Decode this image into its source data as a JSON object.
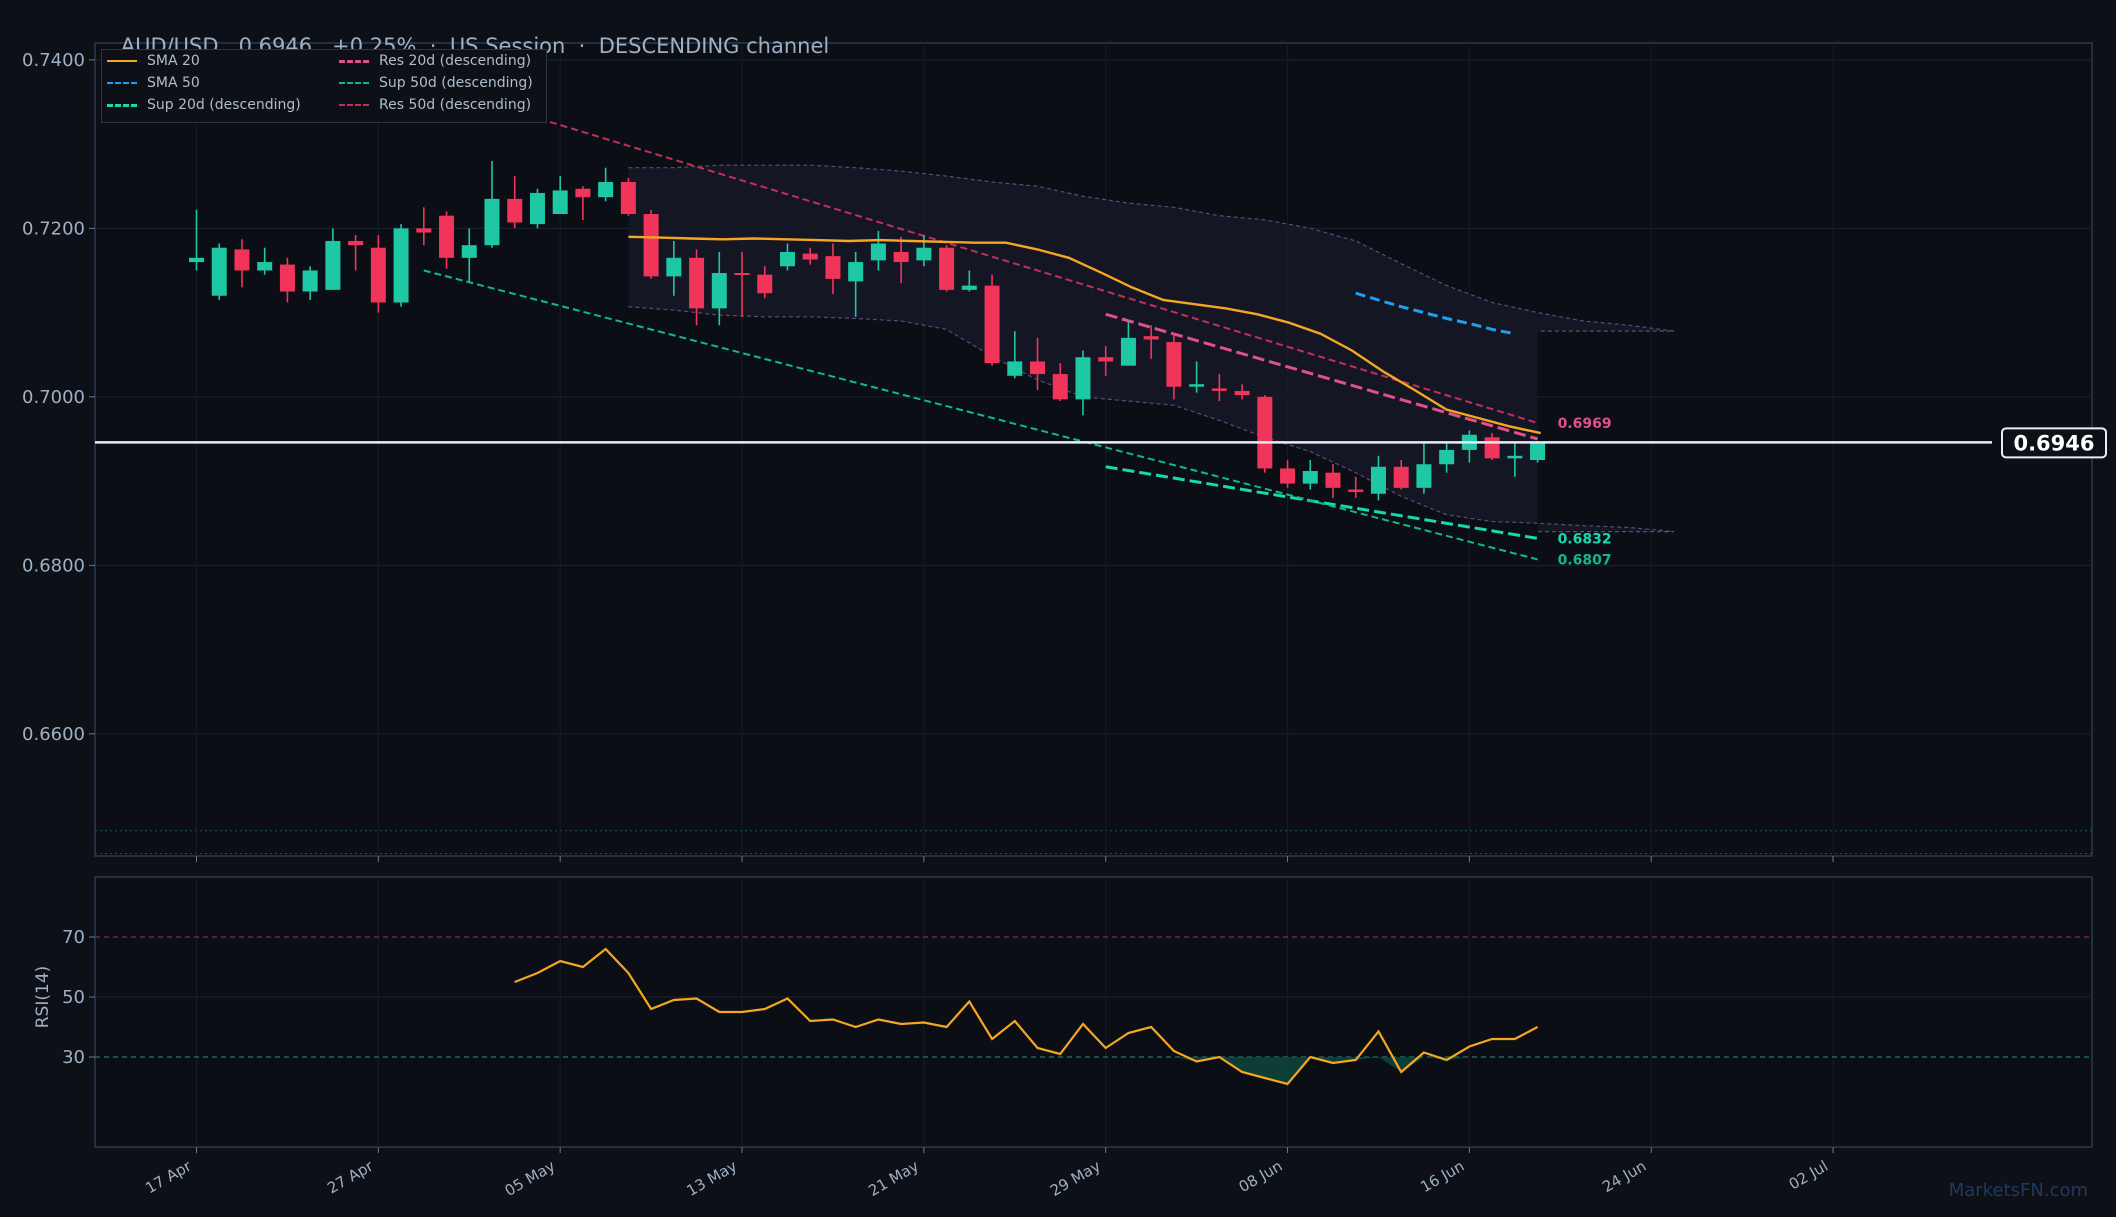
{
  "header": {
    "symbol": "AUD/USD",
    "price": "0.6946",
    "change": "+0.25%",
    "session": "US Session",
    "channel": "DESCENDING channel"
  },
  "watermark": "MarketsFN.com",
  "colors": {
    "background": "#0d1117",
    "bull": "#1ec8a5",
    "bear": "#f0345a",
    "sma20": "#f5a623",
    "sma50": "#1ea0f0",
    "support": "#18d8b0",
    "support50": "#12b886",
    "resistance": "#e0508a",
    "resistance50": "#c0305a",
    "rsi": "#f5a623",
    "grid": "#1b2330",
    "axis_text": "#9fb0c3"
  },
  "legend": [
    {
      "label": "SMA 20",
      "color": "#f5a623",
      "style": "solid"
    },
    {
      "label": "SMA 50",
      "color": "#1ea0f0",
      "style": "dashed"
    },
    {
      "label": "Sup 20d (descending)",
      "color": "#18d8b0",
      "style": "dashed"
    },
    {
      "label": "Res 20d (descending)",
      "color": "#e0508a",
      "style": "dashed"
    },
    {
      "label": "Sup 50d (descending)",
      "color": "#12b886",
      "style": "dotdash"
    },
    {
      "label": "Res 50d (descending)",
      "color": "#c0305a",
      "style": "dotdash"
    }
  ],
  "chart_data": {
    "type": "candlestick",
    "title": "AUD/USD   0.6946   +0.25%  ·  US Session  ·  DESCENDING channel",
    "x_tick_labels": [
      "17 Apr",
      "27 Apr",
      "05 May",
      "13 May",
      "21 May",
      "29 May",
      "08 Jun",
      "16 Jun",
      "24 Jun",
      "02 Jul"
    ],
    "y_ticks": [
      "0.7400",
      "0.7200",
      "0.7000",
      "0.6800",
      "0.6600"
    ],
    "ylim": [
      0.6455,
      0.742
    ],
    "last_price": 0.6946,
    "last_price_label": "0.6946",
    "candles": [
      {
        "o": 0.716,
        "h": 0.7222,
        "l": 0.715,
        "c": 0.7165
      },
      {
        "o": 0.712,
        "h": 0.7182,
        "l": 0.7115,
        "c": 0.7177
      },
      {
        "o": 0.7175,
        "h": 0.7187,
        "l": 0.713,
        "c": 0.715
      },
      {
        "o": 0.715,
        "h": 0.7177,
        "l": 0.7145,
        "c": 0.716
      },
      {
        "o": 0.7157,
        "h": 0.7165,
        "l": 0.7112,
        "c": 0.7125
      },
      {
        "o": 0.7125,
        "h": 0.7155,
        "l": 0.7115,
        "c": 0.715
      },
      {
        "o": 0.7127,
        "h": 0.72,
        "l": 0.7127,
        "c": 0.7185
      },
      {
        "o": 0.7185,
        "h": 0.7192,
        "l": 0.715,
        "c": 0.718
      },
      {
        "o": 0.7177,
        "h": 0.7192,
        "l": 0.71,
        "c": 0.7112
      },
      {
        "o": 0.7112,
        "h": 0.7205,
        "l": 0.7107,
        "c": 0.72
      },
      {
        "o": 0.72,
        "h": 0.7225,
        "l": 0.718,
        "c": 0.7195
      },
      {
        "o": 0.7215,
        "h": 0.722,
        "l": 0.7152,
        "c": 0.7165
      },
      {
        "o": 0.7165,
        "h": 0.72,
        "l": 0.7137,
        "c": 0.718
      },
      {
        "o": 0.718,
        "h": 0.728,
        "l": 0.7177,
        "c": 0.7235
      },
      {
        "o": 0.7235,
        "h": 0.7262,
        "l": 0.72,
        "c": 0.7207
      },
      {
        "o": 0.7205,
        "h": 0.7247,
        "l": 0.72,
        "c": 0.7242
      },
      {
        "o": 0.7217,
        "h": 0.7262,
        "l": 0.7217,
        "c": 0.7245
      },
      {
        "o": 0.7247,
        "h": 0.725,
        "l": 0.721,
        "c": 0.7237
      },
      {
        "o": 0.7237,
        "h": 0.7272,
        "l": 0.7232,
        "c": 0.7255
      },
      {
        "o": 0.7255,
        "h": 0.726,
        "l": 0.7215,
        "c": 0.7217
      },
      {
        "o": 0.7217,
        "h": 0.7222,
        "l": 0.714,
        "c": 0.7143
      },
      {
        "o": 0.7143,
        "h": 0.7185,
        "l": 0.712,
        "c": 0.7165
      },
      {
        "o": 0.7165,
        "h": 0.7175,
        "l": 0.7085,
        "c": 0.7105
      },
      {
        "o": 0.7105,
        "h": 0.7172,
        "l": 0.7085,
        "c": 0.7147
      },
      {
        "o": 0.7147,
        "h": 0.7172,
        "l": 0.7095,
        "c": 0.7145
      },
      {
        "o": 0.7145,
        "h": 0.7155,
        "l": 0.7117,
        "c": 0.7123
      },
      {
        "o": 0.7155,
        "h": 0.7182,
        "l": 0.715,
        "c": 0.7172
      },
      {
        "o": 0.717,
        "h": 0.7177,
        "l": 0.7157,
        "c": 0.7163
      },
      {
        "o": 0.7167,
        "h": 0.7182,
        "l": 0.7122,
        "c": 0.714
      },
      {
        "o": 0.7137,
        "h": 0.7172,
        "l": 0.7095,
        "c": 0.716
      },
      {
        "o": 0.7162,
        "h": 0.7197,
        "l": 0.715,
        "c": 0.7182
      },
      {
        "o": 0.7172,
        "h": 0.719,
        "l": 0.7135,
        "c": 0.716
      },
      {
        "o": 0.7162,
        "h": 0.7192,
        "l": 0.7155,
        "c": 0.7177
      },
      {
        "o": 0.7177,
        "h": 0.718,
        "l": 0.7125,
        "c": 0.7127
      },
      {
        "o": 0.7127,
        "h": 0.715,
        "l": 0.7125,
        "c": 0.7132
      },
      {
        "o": 0.7132,
        "h": 0.7145,
        "l": 0.7037,
        "c": 0.704
      },
      {
        "o": 0.7025,
        "h": 0.7078,
        "l": 0.7022,
        "c": 0.7042
      },
      {
        "o": 0.7042,
        "h": 0.707,
        "l": 0.7008,
        "c": 0.7027
      },
      {
        "o": 0.7027,
        "h": 0.704,
        "l": 0.6995,
        "c": 0.6997
      },
      {
        "o": 0.6997,
        "h": 0.7055,
        "l": 0.6978,
        "c": 0.7047
      },
      {
        "o": 0.7047,
        "h": 0.706,
        "l": 0.7025,
        "c": 0.7042
      },
      {
        "o": 0.7037,
        "h": 0.709,
        "l": 0.7037,
        "c": 0.707
      },
      {
        "o": 0.7072,
        "h": 0.7085,
        "l": 0.7045,
        "c": 0.7068
      },
      {
        "o": 0.7065,
        "h": 0.7075,
        "l": 0.6997,
        "c": 0.7012
      },
      {
        "o": 0.7012,
        "h": 0.7042,
        "l": 0.7005,
        "c": 0.7015
      },
      {
        "o": 0.701,
        "h": 0.7027,
        "l": 0.6995,
        "c": 0.7007
      },
      {
        "o": 0.7007,
        "h": 0.7015,
        "l": 0.6997,
        "c": 0.7002
      },
      {
        "o": 0.7,
        "h": 0.7002,
        "l": 0.691,
        "c": 0.6915
      },
      {
        "o": 0.6915,
        "h": 0.6925,
        "l": 0.6892,
        "c": 0.6897
      },
      {
        "o": 0.6897,
        "h": 0.6925,
        "l": 0.689,
        "c": 0.6912
      },
      {
        "o": 0.691,
        "h": 0.692,
        "l": 0.688,
        "c": 0.6892
      },
      {
        "o": 0.689,
        "h": 0.6905,
        "l": 0.688,
        "c": 0.6887
      },
      {
        "o": 0.6885,
        "h": 0.693,
        "l": 0.6877,
        "c": 0.6917
      },
      {
        "o": 0.6917,
        "h": 0.6925,
        "l": 0.689,
        "c": 0.6892
      },
      {
        "o": 0.6892,
        "h": 0.6945,
        "l": 0.6885,
        "c": 0.692
      },
      {
        "o": 0.692,
        "h": 0.6947,
        "l": 0.691,
        "c": 0.6937
      },
      {
        "o": 0.6937,
        "h": 0.696,
        "l": 0.6922,
        "c": 0.6955
      },
      {
        "o": 0.6952,
        "h": 0.6957,
        "l": 0.6925,
        "c": 0.6927
      },
      {
        "o": 0.6927,
        "h": 0.6945,
        "l": 0.6905,
        "c": 0.693
      },
      {
        "o": 0.6925,
        "h": 0.6947,
        "l": 0.6922,
        "c": 0.6946
      }
    ],
    "sma20": [
      0.719,
      0.7189,
      0.7188,
      0.7187,
      0.7188,
      0.7187,
      0.7186,
      0.7185,
      0.7186,
      0.7185,
      0.7184,
      0.7183,
      0.7183,
      0.7175,
      0.7165,
      0.7148,
      0.713,
      0.7115,
      0.711,
      0.7105,
      0.7098,
      0.7088,
      0.7075,
      0.7055,
      0.703,
      0.7008,
      0.6985,
      0.6975,
      0.6965,
      0.6957
    ],
    "sma20_start_index": 19,
    "sma50": [
      0.7123,
      0.7115,
      0.7107,
      0.71,
      0.7093,
      0.7087,
      0.708,
      0.7075
    ],
    "sma50_start_index": 51,
    "bands": {
      "upper": [
        0.7272,
        0.7272,
        0.7275,
        0.7275,
        0.7275,
        0.7272,
        0.7268,
        0.7262,
        0.7255,
        0.725,
        0.7238,
        0.723,
        0.7225,
        0.7215,
        0.721,
        0.72,
        0.7185,
        0.7158,
        0.7132,
        0.7112,
        0.71,
        0.709,
        0.7085,
        0.7078
      ],
      "lower": [
        0.7107,
        0.7103,
        0.7097,
        0.7095,
        0.7095,
        0.7093,
        0.709,
        0.708,
        0.7048,
        0.702,
        0.7,
        0.6995,
        0.699,
        0.6972,
        0.6952,
        0.6935,
        0.691,
        0.6882,
        0.686,
        0.6852,
        0.685,
        0.6847,
        0.6845,
        0.684
      ],
      "start_index": 19,
      "step": 2
    },
    "trendlines": [
      {
        "name": "Sup 20d (descending)",
        "from": [
          40,
          0.6917
        ],
        "to": [
          59,
          0.6832
        ],
        "label": "0.6832"
      },
      {
        "name": "Res 20d (descending)",
        "from": [
          40,
          0.7098
        ],
        "to": [
          59,
          0.695
        ]
      },
      {
        "name": "Sup 50d (descending)",
        "from": [
          10,
          0.715
        ],
        "to": [
          59,
          0.6807
        ],
        "label": "0.6807"
      },
      {
        "name": "Res 50d (descending)",
        "from": [
          10,
          0.7372
        ],
        "to": [
          59,
          0.6969
        ],
        "label": "0.6969"
      }
    ],
    "rsi": {
      "label": "RSI(14)",
      "levels": [
        70,
        30
      ],
      "y_ticks": [
        "70",
        "50",
        "30"
      ],
      "ylim": [
        0,
        90
      ],
      "start_index": 14,
      "values": [
        55,
        58,
        62,
        60,
        66,
        58,
        46,
        49,
        49.5,
        45,
        45,
        46,
        49.5,
        42,
        42.5,
        40,
        42.5,
        41,
        41.5,
        40,
        48.5,
        36,
        42,
        33,
        31,
        41,
        33,
        38,
        40,
        32,
        28.5,
        30,
        25,
        23,
        21,
        30,
        28,
        29,
        38.5,
        25,
        31.5,
        29,
        33.5,
        36,
        36,
        40
      ]
    }
  }
}
